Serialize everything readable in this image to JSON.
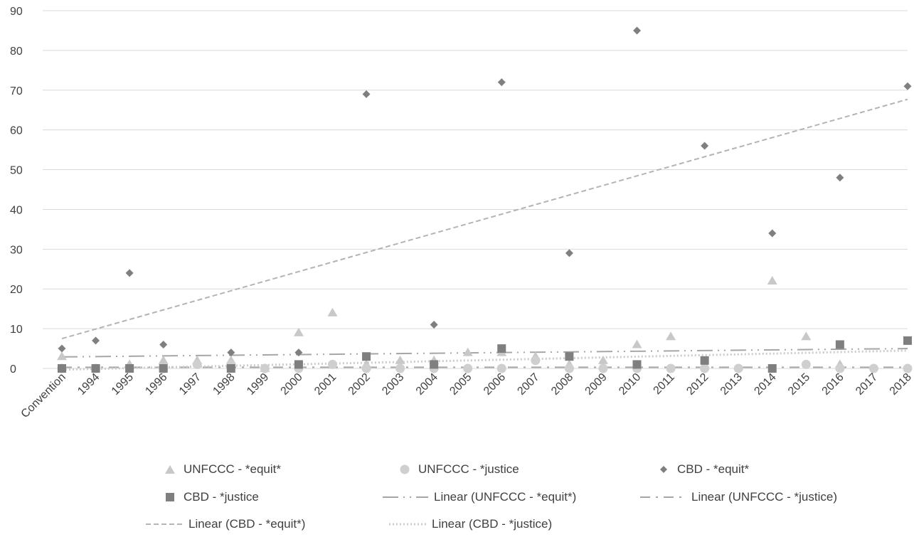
{
  "colors": {
    "unfccc_equit": "#c8c8c8",
    "unfccc_justice": "#cfcfcf",
    "cbd_equit": "#7f7f7f",
    "cbd_justice": "#7f7f7f",
    "trend_unfccc_equit": "#a6a6a6",
    "trend_unfccc_justice": "#a6a6a6",
    "trend_cbd_equit": "#b4b4b4",
    "trend_cbd_justice": "#cccccc",
    "grid": "#d9d9d9",
    "text": "#404040"
  },
  "chart_data": {
    "type": "scatter",
    "title": "",
    "xlabel": "",
    "ylabel": "",
    "ylim": [
      0,
      90
    ],
    "yticks": [
      0,
      10,
      20,
      30,
      40,
      50,
      60,
      70,
      80,
      90
    ],
    "grid": true,
    "legend_position": "bottom",
    "categories": [
      "Convention",
      "1994",
      "1995",
      "1996",
      "1997",
      "1998",
      "1999",
      "2000",
      "2001",
      "2002",
      "2003",
      "2004",
      "2005",
      "2006",
      "2007",
      "2008",
      "2009",
      "2010",
      "2011",
      "2012",
      "2013",
      "2014",
      "2015",
      "2016",
      "2017",
      "2018"
    ],
    "series": [
      {
        "name": "UNFCCC - *equit*",
        "marker": "triangle",
        "color": "#c8c8c8",
        "values": [
          3,
          null,
          1,
          2,
          2,
          2,
          0,
          9,
          14,
          1,
          2,
          2,
          4,
          4,
          3,
          1,
          2,
          6,
          8,
          1,
          null,
          22,
          8,
          1,
          null,
          null
        ]
      },
      {
        "name": "UNFCCC - *justice",
        "marker": "circle",
        "color": "#cfcfcf",
        "values": [
          0,
          0,
          null,
          0,
          1,
          1,
          0,
          0,
          1,
          0,
          0,
          0,
          0,
          0,
          2,
          0,
          0,
          0,
          0,
          0,
          0,
          null,
          1,
          0,
          0,
          0
        ]
      },
      {
        "name": "CBD - *equit*",
        "marker": "diamond",
        "color": "#7f7f7f",
        "values": [
          5,
          7,
          24,
          6,
          null,
          4,
          null,
          4,
          null,
          69,
          null,
          11,
          null,
          72,
          null,
          29,
          null,
          85,
          null,
          56,
          null,
          34,
          null,
          48,
          null,
          71
        ]
      },
      {
        "name": "CBD - *justice",
        "marker": "square",
        "color": "#7f7f7f",
        "values": [
          0,
          0,
          0,
          0,
          null,
          0,
          null,
          1,
          null,
          3,
          null,
          1,
          null,
          5,
          null,
          3,
          null,
          1,
          null,
          2,
          null,
          0,
          null,
          6,
          null,
          7
        ]
      }
    ],
    "trendlines": [
      {
        "name": "Linear (UNFCCC - *equit*)",
        "style": "long-dash-dot-dot",
        "color": "#a6a6a6",
        "start": 2.9,
        "end": 5.0
      },
      {
        "name": "Linear (UNFCCC - *justice)",
        "style": "long-dash-dot",
        "color": "#a6a6a6",
        "start": 0.3,
        "end": 0.3
      },
      {
        "name": "Linear (CBD - *equit*)",
        "style": "dash",
        "color": "#b4b4b4",
        "start": 7.5,
        "end": 67.7
      },
      {
        "name": "Linear (CBD - *justice)",
        "style": "dot",
        "color": "#cccccc",
        "start": -0.3,
        "end": 4.5
      }
    ]
  }
}
